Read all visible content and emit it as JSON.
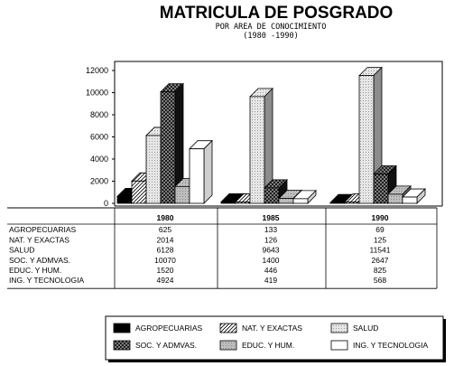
{
  "chart_data": {
    "type": "bar",
    "title": "MATRICULA DE POSGRADO",
    "subtitle": "POR AREA DE CONOCIMIENTO",
    "subtitle2": "(1980 -1990)",
    "categories": [
      "1980",
      "1985",
      "1990"
    ],
    "ylim": [
      0,
      12000
    ],
    "yticks": [
      "0",
      "2000",
      "4000",
      "6000",
      "8000",
      "10000",
      "12000"
    ],
    "grid": false,
    "legend_position": "bottom",
    "series": [
      {
        "name": "AGROPECUARIAS",
        "values": [
          625,
          133,
          69
        ],
        "labels": [
          "625",
          "133",
          "69"
        ],
        "fill": "solid-black"
      },
      {
        "name": "NAT. Y EXACTAS",
        "values": [
          2014,
          126,
          125
        ],
        "labels": [
          "2014",
          "126",
          "125"
        ],
        "fill": "hatch-light"
      },
      {
        "name": "SALUD",
        "values": [
          6128,
          9643,
          11541
        ],
        "labels": [
          "6128",
          "9643",
          "11541"
        ],
        "fill": "dots-light"
      },
      {
        "name": "SOC. Y ADMVAS.",
        "values": [
          10070,
          1400,
          2647
        ],
        "labels": [
          "10070",
          "1400",
          "2647"
        ],
        "fill": "crosshatch-dark"
      },
      {
        "name": "EDUC. Y HUM.",
        "values": [
          1520,
          446,
          825
        ],
        "labels": [
          "1520",
          "446",
          "825"
        ],
        "fill": "gray"
      },
      {
        "name": "ING. Y TECNOLOGIA",
        "values": [
          4924,
          419,
          568
        ],
        "labels": [
          "4924",
          "419",
          "568"
        ],
        "fill": "white"
      }
    ],
    "legend_order": [
      "AGROPECUARIAS",
      "NAT. Y EXACTAS",
      "SALUD",
      "SOC. Y ADMVAS.",
      "EDUC. Y HUM.",
      "ING. Y TECNOLOGIA"
    ]
  }
}
